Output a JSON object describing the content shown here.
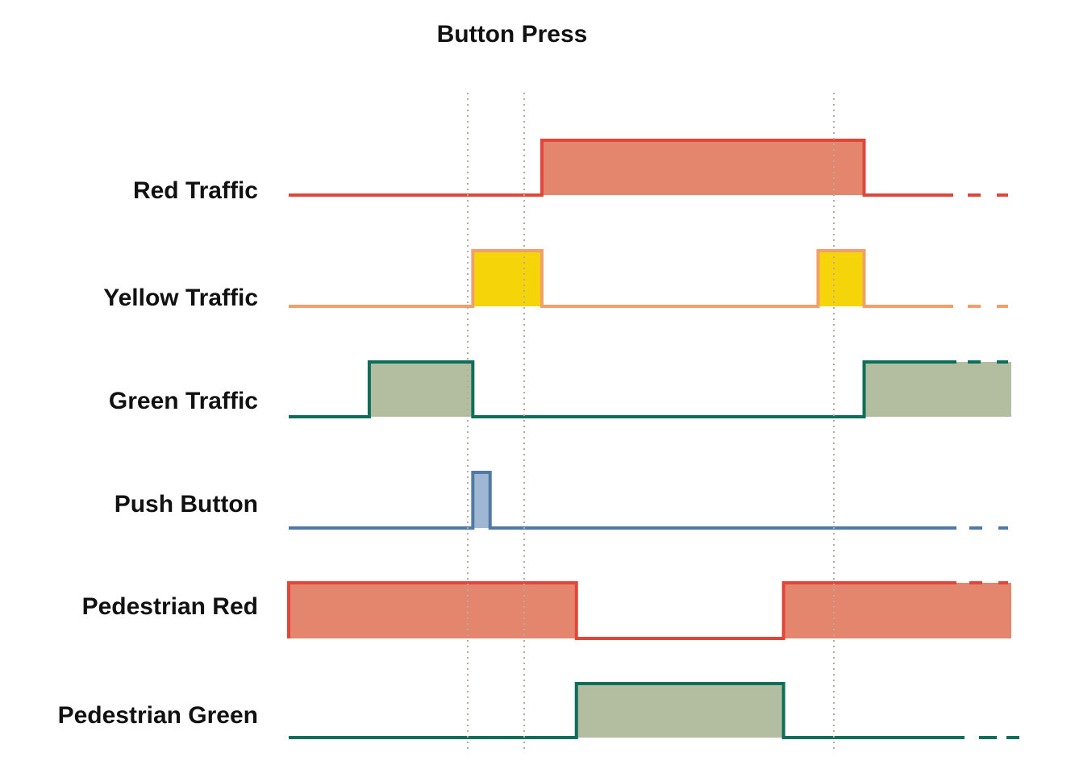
{
  "title": "Button Press",
  "time_markers": [
    "button_press",
    "yellow_end",
    "yellow2_end"
  ],
  "signals": [
    {
      "label": "Red Traffic",
      "color": "#e0473a",
      "fill": "#e4866d",
      "segments": [
        [
          0,
          0.22,
          0
        ],
        [
          0.22,
          0.5,
          1
        ],
        [
          0.5,
          0.63,
          0
        ]
      ],
      "tail": 0
    },
    {
      "label": "Yellow Traffic",
      "color": "#f2a06b",
      "fill": "#f5d50a",
      "segments": [
        [
          0,
          0.16,
          0
        ],
        [
          0.16,
          0.22,
          1
        ],
        [
          0.22,
          0.46,
          0
        ],
        [
          0.46,
          0.5,
          1
        ],
        [
          0.5,
          0.63,
          0
        ]
      ],
      "tail": 0
    },
    {
      "label": "Green Traffic",
      "color": "#0f6e5a",
      "fill": "#b3bd9f",
      "segments": [
        [
          0,
          0.07,
          0
        ],
        [
          0.07,
          0.16,
          1
        ],
        [
          0.16,
          0.5,
          0
        ],
        [
          0.5,
          0.63,
          1
        ]
      ],
      "tail": 1
    },
    {
      "label": "Push Button",
      "color": "#4f7aa5",
      "fill": "#9fb7d2",
      "segments": [
        [
          0,
          0.16,
          0
        ],
        [
          0.16,
          0.175,
          1
        ],
        [
          0.175,
          0.63,
          0
        ]
      ],
      "tail": 0
    },
    {
      "label": "Pedestrian Red",
      "color": "#e0473a",
      "fill": "#e4866d",
      "segments": [
        [
          0,
          0.25,
          1
        ],
        [
          0.25,
          0.43,
          0
        ],
        [
          0.43,
          0.63,
          1
        ]
      ],
      "tail": 1
    },
    {
      "label": "Pedestrian Green",
      "color": "#0f6e5a",
      "fill": "#b3bd9f",
      "segments": [
        [
          0,
          0.25,
          0
        ],
        [
          0.25,
          0.43,
          1
        ],
        [
          0.43,
          0.63,
          0
        ]
      ],
      "tail": 0
    }
  ]
}
